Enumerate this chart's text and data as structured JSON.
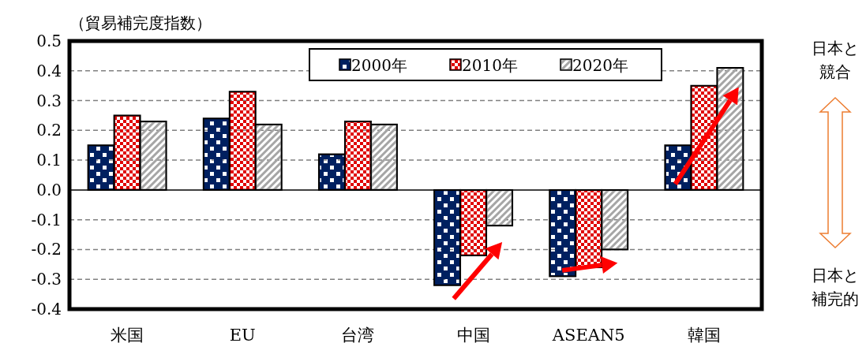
{
  "chart_data": {
    "type": "bar",
    "ylabel": "（貿易補完度指数）",
    "categories": [
      "米国",
      "EU",
      "台湾",
      "中国",
      "ASEAN5",
      "韓国"
    ],
    "series": [
      {
        "name": "2000年",
        "color": "#002060",
        "values": [
          0.15,
          0.24,
          0.12,
          -0.32,
          -0.29,
          0.15
        ]
      },
      {
        "name": "2010年",
        "color": "#e00000",
        "values": [
          0.25,
          0.33,
          0.23,
          -0.22,
          -0.26,
          0.35
        ]
      },
      {
        "name": "2020年",
        "color": "#a6a6a6",
        "values": [
          0.23,
          0.22,
          0.22,
          -0.12,
          -0.2,
          0.41
        ]
      }
    ],
    "ylim": [
      -0.4,
      0.5
    ],
    "yticks": [
      {
        "value": -0.4,
        "label": "-0.4"
      },
      {
        "value": -0.3,
        "label": "-0.3"
      },
      {
        "value": -0.2,
        "label": "-0.2"
      },
      {
        "value": -0.1,
        "label": "-0.1"
      },
      {
        "value": 0,
        "label": "0.0"
      },
      {
        "value": 0.1,
        "label": "0.1"
      },
      {
        "value": 0.2,
        "label": "0.2"
      },
      {
        "value": 0.3,
        "label": "0.3"
      },
      {
        "value": 0.4,
        "label": "0.4"
      },
      {
        "value": 0.5,
        "label": "0.5"
      }
    ],
    "grid": "y",
    "legend": "top right",
    "annotations": [
      "日本と競合",
      "日本と補完的"
    ]
  }
}
